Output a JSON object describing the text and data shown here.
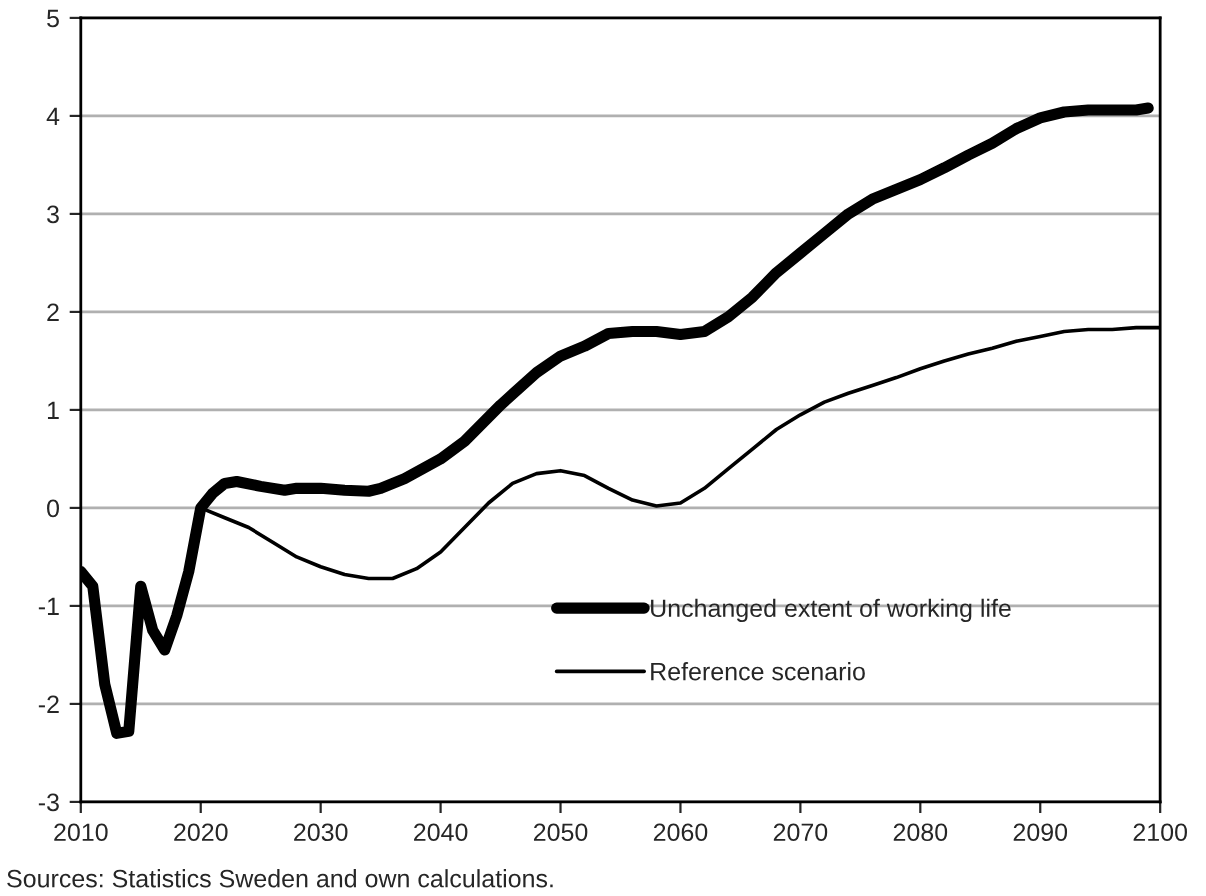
{
  "chart_data": {
    "type": "line",
    "xlim": [
      2010,
      2100
    ],
    "xticks": [
      2010,
      2020,
      2030,
      2040,
      2050,
      2060,
      2070,
      2080,
      2090,
      2100
    ],
    "ylim": [
      -3,
      5
    ],
    "yticks": [
      -3,
      -2,
      -1,
      0,
      1,
      2,
      3,
      4,
      5
    ],
    "grid": "y",
    "legend": "bottom right",
    "marker": "none",
    "line_style": "solid",
    "annotations": [
      "Sources: Statistics Sweden and own calculations."
    ],
    "series": [
      {
        "name": "Unchanged extent of working life",
        "color": "#000000",
        "x": [
          2010,
          2011,
          2012,
          2013,
          2014,
          2015,
          2016,
          2017,
          2018,
          2019,
          2020,
          2021,
          2022,
          2023,
          2025,
          2027,
          2028,
          2030,
          2032,
          2034,
          2035,
          2037,
          2040,
          2042,
          2045,
          2048,
          2050,
          2052,
          2054,
          2056,
          2058,
          2060,
          2062,
          2064,
          2066,
          2068,
          2070,
          2072,
          2074,
          2076,
          2078,
          2080,
          2082,
          2084,
          2086,
          2088,
          2090,
          2092,
          2094,
          2096,
          2098,
          2099
        ],
        "values": [
          -0.65,
          -0.8,
          -1.8,
          -2.3,
          -2.28,
          -0.8,
          -1.25,
          -1.45,
          -1.1,
          -0.65,
          0,
          0.15,
          0.25,
          0.27,
          0.22,
          0.18,
          0.2,
          0.2,
          0.18,
          0.17,
          0.2,
          0.3,
          0.5,
          0.68,
          1.05,
          1.38,
          1.55,
          1.65,
          1.78,
          1.8,
          1.8,
          1.77,
          1.8,
          1.95,
          2.15,
          2.4,
          2.6,
          2.8,
          3.0,
          3.15,
          3.25,
          3.35,
          3.47,
          3.6,
          3.72,
          3.87,
          3.98,
          4.04,
          4.06,
          4.06,
          4.06,
          4.08
        ]
      },
      {
        "name": "Reference scenario",
        "color": "#000000",
        "x": [
          2020,
          2022,
          2024,
          2026,
          2028,
          2030,
          2032,
          2034,
          2036,
          2038,
          2040,
          2042,
          2044,
          2046,
          2048,
          2050,
          2052,
          2054,
          2056,
          2058,
          2060,
          2062,
          2064,
          2066,
          2068,
          2070,
          2072,
          2074,
          2076,
          2078,
          2080,
          2082,
          2084,
          2086,
          2088,
          2090,
          2092,
          2094,
          2096,
          2098,
          2100
        ],
        "values": [
          0,
          -0.1,
          -0.2,
          -0.35,
          -0.5,
          -0.6,
          -0.68,
          -0.72,
          -0.72,
          -0.62,
          -0.45,
          -0.2,
          0.05,
          0.25,
          0.35,
          0.38,
          0.33,
          0.2,
          0.08,
          0.02,
          0.05,
          0.2,
          0.4,
          0.6,
          0.8,
          0.95,
          1.08,
          1.17,
          1.25,
          1.33,
          1.42,
          1.5,
          1.57,
          1.63,
          1.7,
          1.75,
          1.8,
          1.82,
          1.82,
          1.84,
          1.84
        ]
      }
    ]
  }
}
